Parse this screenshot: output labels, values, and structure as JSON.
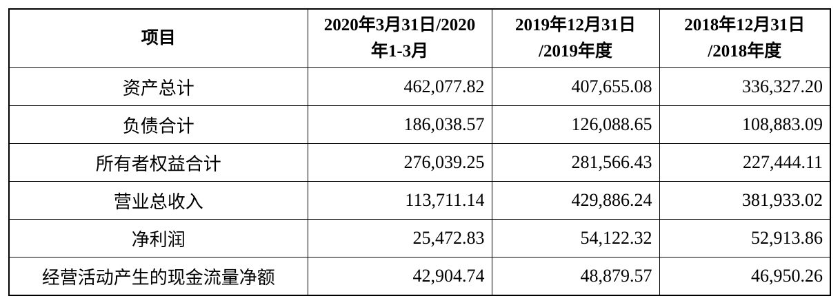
{
  "table": {
    "header": [
      [
        "项目"
      ],
      [
        "2020年3月31日/2020",
        "年1-3月"
      ],
      [
        "2019年12月31日",
        "/2019年度"
      ],
      [
        "2018年12月31日",
        "/2018年度"
      ]
    ],
    "rows": [
      [
        "资产总计",
        "462,077.82",
        "407,655.08",
        "336,327.20"
      ],
      [
        "负债合计",
        "186,038.57",
        "126,088.65",
        "108,883.09"
      ],
      [
        "所有者权益合计",
        "276,039.25",
        "281,566.43",
        "227,444.11"
      ],
      [
        "营业总收入",
        "113,711.14",
        "429,886.24",
        "381,933.02"
      ],
      [
        "净利润",
        "25,472.83",
        "54,122.32",
        "52,913.86"
      ],
      [
        "经营活动产生的现金流量净额",
        "42,904.74",
        "48,879.57",
        "46,950.26"
      ]
    ]
  }
}
